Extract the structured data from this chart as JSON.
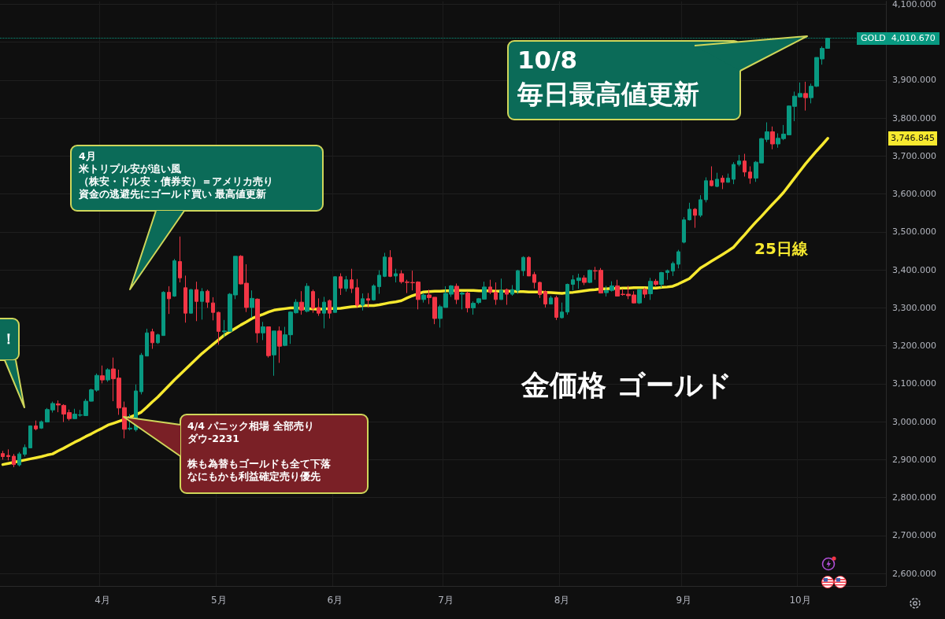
{
  "chart_data": {
    "type": "candlestick",
    "title": "金価格 ゴールド",
    "categories": [
      null,
      null,
      null,
      null,
      null,
      null,
      null,
      null,
      null,
      null,
      null,
      null,
      null,
      null,
      null,
      null,
      null,
      null,
      "4月",
      null,
      null,
      null,
      null,
      null,
      null,
      null,
      null,
      null,
      null,
      null,
      null,
      null,
      null,
      null,
      null,
      null,
      null,
      null,
      null,
      "5月",
      null,
      null,
      null,
      null,
      null,
      null,
      null,
      null,
      null,
      null,
      null,
      null,
      null,
      null,
      null,
      null,
      null,
      null,
      null,
      null,
      "6月",
      null,
      null,
      null,
      null,
      null,
      null,
      null,
      null,
      null,
      null,
      null,
      null,
      null,
      null,
      null,
      null,
      null,
      null,
      null,
      "7月",
      null,
      null,
      null,
      null,
      null,
      null,
      null,
      null,
      null,
      null,
      null,
      null,
      null,
      null,
      null,
      null,
      null,
      null,
      null,
      null,
      "8月",
      null,
      null,
      null,
      null,
      null,
      null,
      null,
      null,
      null,
      null,
      null,
      null,
      null,
      null,
      null,
      null,
      null,
      null,
      null,
      null,
      null,
      "9月",
      null,
      null,
      null,
      null,
      null,
      null,
      null,
      null,
      null,
      null,
      null,
      null,
      null,
      null,
      null,
      null,
      null,
      null,
      null,
      null,
      "10月",
      null,
      null,
      null,
      null,
      null
    ],
    "series": [
      {
        "name": "GOLD",
        "colors": [
          "#f23645",
          "#f23645",
          "#f23645",
          "#089981",
          "#089981",
          "#089981",
          "#f23645",
          "#089981",
          "#089981",
          "#089981",
          "#f23645",
          "#f23645",
          "#f23645",
          "#089981",
          "#089981",
          "#089981",
          "#089981",
          "#089981",
          "#f23645",
          "#089981",
          "#f23645",
          "#f23645",
          "#f23645",
          "#089981",
          "#089981",
          "#089981",
          "#089981",
          "#f23645",
          "#089981",
          "#089981",
          "#f23645",
          "#089981",
          "#f23645",
          "#f23645",
          "#089981",
          "#f23645",
          "#089981",
          "#f23645",
          "#f23645",
          "#f23645",
          "#089981",
          "#089981",
          "#089981",
          "#f23645",
          "#f23645",
          "#089981",
          "#f23645",
          "#089981",
          "#f23645",
          "#089981",
          "#f23645",
          "#089981",
          "#089981",
          "#089981",
          "#f23645",
          "#089981",
          "#f23645",
          "#f23645",
          "#089981",
          "#f23645",
          "#089981",
          "#f23645",
          "#089981",
          "#f23645",
          "#f23645",
          "#089981",
          "#f23645",
          "#089981",
          "#089981",
          "#089981",
          "#f23645",
          "#089981",
          "#f23645",
          "#f23645",
          "#f23645",
          "#f23645",
          "#089981",
          "#f23645",
          "#f23645",
          "#089981",
          "#089981",
          "#089981",
          "#f23645",
          "#089981",
          "#f23645",
          "#089981",
          "#089981",
          "#089981",
          "#f23645",
          "#f23645",
          "#089981",
          "#f23645",
          "#089981",
          "#089981",
          "#089981",
          "#f23645",
          "#f23645",
          "#f23645",
          "#f23645",
          "#089981",
          "#f23645",
          "#089981",
          "#089981",
          "#089981",
          "#089981",
          "#f23645",
          "#089981",
          "#f23645",
          "#f23645",
          "#089981",
          "#089981",
          "#f23645",
          "#f23645",
          "#f23645",
          "#f23645",
          "#089981",
          "#f23645",
          "#089981",
          "#f23645",
          "#089981",
          "#089981",
          "#089981",
          "#089981",
          "#089981",
          "#089981",
          "#f23645",
          "#089981",
          "#089981",
          "#f23645",
          "#089981",
          "#f23645",
          "#089981",
          "#089981",
          "#089981",
          "#f23645",
          "#f23645",
          "#089981",
          "#089981",
          "#089981",
          "#f23645",
          "#089981",
          "#089981",
          "#089981",
          "#089981",
          "#089981",
          "#f23645",
          "#089981",
          "#089981",
          "#089981",
          "#089981"
        ],
        "ohlc": [
          [
            2916,
            2923,
            2900,
            2908
          ],
          [
            2911,
            2927,
            2898,
            2908
          ],
          [
            2909,
            2915,
            2880,
            2887
          ],
          [
            2886,
            2920,
            2882,
            2915
          ],
          [
            2914,
            2940,
            2908,
            2932
          ],
          [
            2931,
            2990,
            2930,
            2989
          ],
          [
            2989,
            3003,
            2977,
            2981
          ],
          [
            2983,
            3003,
            2981,
            3000
          ],
          [
            2999,
            3036,
            2998,
            3032
          ],
          [
            3031,
            3053,
            3024,
            3048
          ],
          [
            3047,
            3056,
            3025,
            3044
          ],
          [
            3043,
            3046,
            2999,
            3020
          ],
          [
            3024,
            3032,
            3003,
            3008
          ],
          [
            3008,
            3034,
            3007,
            3020
          ],
          [
            3017,
            3031,
            3013,
            3018
          ],
          [
            3016,
            3060,
            3015,
            3054
          ],
          [
            3054,
            3087,
            3053,
            3084
          ],
          [
            3083,
            3127,
            3079,
            3122
          ],
          [
            3121,
            3148,
            3101,
            3110
          ],
          [
            3110,
            3141,
            3105,
            3137
          ],
          [
            3139,
            3169,
            3054,
            3113
          ],
          [
            3115,
            3137,
            3018,
            3036
          ],
          [
            3037,
            3053,
            2956,
            2980
          ],
          [
            2981,
            3020,
            2977,
            2983
          ],
          [
            2979,
            3098,
            2974,
            3081
          ],
          [
            3079,
            3181,
            3072,
            3175
          ],
          [
            3173,
            3245,
            3173,
            3234
          ],
          [
            3237,
            3245,
            3192,
            3208
          ],
          [
            3208,
            3232,
            3205,
            3229
          ],
          [
            3227,
            3344,
            3227,
            3341
          ],
          [
            3341,
            3357,
            3284,
            3324
          ],
          [
            3331,
            3429,
            3329,
            3424
          ],
          [
            3422,
            3488,
            3367,
            3379
          ],
          [
            3353,
            3385,
            3261,
            3286
          ],
          [
            3286,
            3350,
            3285,
            3348
          ],
          [
            3348,
            3369,
            3265,
            3317
          ],
          [
            3317,
            3352,
            3269,
            3343
          ],
          [
            3344,
            3348,
            3300,
            3315
          ],
          [
            3313,
            3328,
            3267,
            3288
          ],
          [
            3288,
            3290,
            3203,
            3238
          ],
          [
            3237,
            3268,
            3224,
            3239
          ],
          [
            3238,
            3339,
            3237,
            3336
          ],
          [
            3334,
            3436,
            3323,
            3436
          ],
          [
            3436,
            3439,
            3362,
            3363
          ],
          [
            3365,
            3415,
            3289,
            3301
          ],
          [
            3301,
            3346,
            3274,
            3325
          ],
          [
            3323,
            3325,
            3208,
            3234
          ],
          [
            3234,
            3263,
            3215,
            3250
          ],
          [
            3250,
            3250,
            3169,
            3174
          ],
          [
            3176,
            3239,
            3121,
            3239
          ],
          [
            3239,
            3251,
            3155,
            3199
          ],
          [
            3201,
            3250,
            3199,
            3229
          ],
          [
            3229,
            3291,
            3205,
            3289
          ],
          [
            3287,
            3323,
            3285,
            3315
          ],
          [
            3315,
            3344,
            3282,
            3294
          ],
          [
            3291,
            3365,
            3288,
            3357
          ],
          [
            3343,
            3348,
            3287,
            3299
          ],
          [
            3301,
            3325,
            3279,
            3286
          ],
          [
            3286,
            3329,
            3246,
            3315
          ],
          [
            3319,
            3322,
            3272,
            3286
          ],
          [
            3288,
            3383,
            3288,
            3382
          ],
          [
            3382,
            3391,
            3334,
            3352
          ],
          [
            3351,
            3384,
            3343,
            3374
          ],
          [
            3374,
            3403,
            3339,
            3351
          ],
          [
            3353,
            3376,
            3300,
            3307
          ],
          [
            3307,
            3338,
            3293,
            3324
          ],
          [
            3324,
            3339,
            3301,
            3320
          ],
          [
            3321,
            3362,
            3319,
            3358
          ],
          [
            3356,
            3399,
            3337,
            3386
          ],
          [
            3383,
            3445,
            3381,
            3434
          ],
          [
            3433,
            3452,
            3381,
            3383
          ],
          [
            3384,
            3403,
            3367,
            3390
          ],
          [
            3390,
            3399,
            3364,
            3369
          ],
          [
            3368,
            3374,
            3339,
            3367
          ],
          [
            3367,
            3398,
            3346,
            3366
          ],
          [
            3368,
            3370,
            3296,
            3322
          ],
          [
            3322,
            3339,
            3314,
            3334
          ],
          [
            3334,
            3348,
            3310,
            3327
          ],
          [
            3328,
            3328,
            3257,
            3272
          ],
          [
            3272,
            3308,
            3248,
            3303
          ],
          [
            3301,
            3357,
            3301,
            3338
          ],
          [
            3336,
            3360,
            3329,
            3358
          ],
          [
            3357,
            3364,
            3310,
            3322
          ],
          [
            3336,
            3343,
            3296,
            3339
          ],
          [
            3339,
            3343,
            3288,
            3300
          ],
          [
            3300,
            3317,
            3282,
            3312
          ],
          [
            3314,
            3326,
            3310,
            3324
          ],
          [
            3323,
            3369,
            3322,
            3355
          ],
          [
            3355,
            3374,
            3336,
            3341
          ],
          [
            3341,
            3367,
            3308,
            3322
          ],
          [
            3322,
            3377,
            3321,
            3346
          ],
          [
            3348,
            3351,
            3308,
            3336
          ],
          [
            3336,
            3360,
            3332,
            3348
          ],
          [
            3346,
            3400,
            3337,
            3398
          ],
          [
            3398,
            3436,
            3384,
            3433
          ],
          [
            3433,
            3436,
            3384,
            3384
          ],
          [
            3388,
            3395,
            3351,
            3367
          ],
          [
            3367,
            3369,
            3326,
            3335
          ],
          [
            3343,
            3346,
            3301,
            3310
          ],
          [
            3310,
            3332,
            3310,
            3326
          ],
          [
            3327,
            3332,
            3268,
            3275
          ],
          [
            3274,
            3314,
            3272,
            3289
          ],
          [
            3289,
            3364,
            3282,
            3362
          ],
          [
            3362,
            3386,
            3346,
            3374
          ],
          [
            3372,
            3390,
            3350,
            3379
          ],
          [
            3379,
            3386,
            3360,
            3367
          ],
          [
            3367,
            3401,
            3365,
            3399
          ],
          [
            3398,
            3408,
            3374,
            3397
          ],
          [
            3399,
            3405,
            3338,
            3339
          ],
          [
            3340,
            3358,
            3330,
            3346
          ],
          [
            3346,
            3370,
            3343,
            3358
          ],
          [
            3358,
            3374,
            3331,
            3331
          ],
          [
            3336,
            3350,
            3332,
            3335
          ],
          [
            3336,
            3358,
            3323,
            3332
          ],
          [
            3334,
            3344,
            3312,
            3313
          ],
          [
            3313,
            3350,
            3310,
            3348
          ],
          [
            3348,
            3353,
            3326,
            3336
          ],
          [
            3337,
            3379,
            3321,
            3370
          ],
          [
            3370,
            3376,
            3358,
            3362
          ],
          [
            3362,
            3395,
            3353,
            3393
          ],
          [
            3393,
            3401,
            3374,
            3398
          ],
          [
            3397,
            3422,
            3384,
            3417
          ],
          [
            3415,
            3453,
            3404,
            3448
          ],
          [
            3473,
            3539,
            3470,
            3532
          ],
          [
            3532,
            3577,
            3530,
            3560
          ],
          [
            3560,
            3563,
            3511,
            3544
          ],
          [
            3544,
            3597,
            3539,
            3585
          ],
          [
            3585,
            3644,
            3578,
            3635
          ],
          [
            3635,
            3673,
            3620,
            3622
          ],
          [
            3620,
            3656,
            3618,
            3639
          ],
          [
            3642,
            3649,
            3613,
            3631
          ],
          [
            3631,
            3654,
            3630,
            3642
          ],
          [
            3639,
            3684,
            3626,
            3678
          ],
          [
            3678,
            3703,
            3673,
            3687
          ],
          [
            3687,
            3706,
            3646,
            3658
          ],
          [
            3658,
            3673,
            3627,
            3642
          ],
          [
            3642,
            3687,
            3632,
            3684
          ],
          [
            3682,
            3748,
            3682,
            3746
          ],
          [
            3744,
            3789,
            3737,
            3764
          ],
          [
            3764,
            3778,
            3718,
            3732
          ],
          [
            3732,
            3760,
            3722,
            3747
          ],
          [
            3746,
            3782,
            3742,
            3758
          ],
          [
            3756,
            3833,
            3755,
            3832
          ],
          [
            3831,
            3870,
            3792,
            3858
          ],
          [
            3856,
            3894,
            3854,
            3865
          ],
          [
            3865,
            3896,
            3820,
            3854
          ],
          [
            3854,
            3891,
            3839,
            3884
          ],
          [
            3884,
            3960,
            3882,
            3960
          ],
          [
            3956,
            3989,
            3941,
            3984
          ],
          [
            3984,
            4012,
            3983,
            4010.67
          ]
        ]
      },
      {
        "name": "25日線",
        "type": "line",
        "color": "#f7e92f",
        "values": [
          2887,
          2890,
          2893,
          2896,
          2899,
          2902,
          2905,
          2908,
          2912,
          2915,
          2923,
          2930,
          2938,
          2946,
          2953,
          2961,
          2968,
          2976,
          2983,
          2991,
          2996,
          3001,
          3006,
          3012,
          3018,
          3025,
          3038,
          3052,
          3065,
          3080,
          3095,
          3110,
          3124,
          3138,
          3152,
          3166,
          3180,
          3192,
          3204,
          3216,
          3228,
          3237,
          3246,
          3255,
          3263,
          3272,
          3278,
          3283,
          3289,
          3294,
          3296,
          3298,
          3300,
          3300,
          3299,
          3298,
          3297,
          3296,
          3297,
          3298,
          3298,
          3299,
          3301,
          3303,
          3304,
          3306,
          3306,
          3306,
          3308,
          3311,
          3314,
          3316,
          3319,
          3326,
          3332,
          3337,
          3342,
          3343,
          3344,
          3344,
          3345,
          3345,
          3346,
          3346,
          3346,
          3346,
          3345,
          3345,
          3345,
          3344,
          3344,
          3344,
          3344,
          3343,
          3343,
          3342,
          3342,
          3342,
          3341,
          3340,
          3339,
          3338,
          3340,
          3341,
          3343,
          3345,
          3347,
          3348,
          3350,
          3350,
          3351,
          3351,
          3352,
          3352,
          3353,
          3353,
          3353,
          3352,
          3352,
          3354,
          3355,
          3357,
          3363,
          3370,
          3377,
          3391,
          3405,
          3414,
          3423,
          3432,
          3441,
          3450,
          3460,
          3477,
          3493,
          3510,
          3526,
          3541,
          3557,
          3573,
          3588,
          3604,
          3623,
          3642,
          3661,
          3680,
          3697,
          3714,
          3730,
          3746.845
        ]
      }
    ],
    "ylim": [
      2567,
      4108
    ],
    "yticks": [
      {
        "value": 2600,
        "label": "2,600.000"
      },
      {
        "value": 2700,
        "label": "2,700.000"
      },
      {
        "value": 2800,
        "label": "2,800.000"
      },
      {
        "value": 2900,
        "label": "2,900.000"
      },
      {
        "value": 3000,
        "label": "3,000.000"
      },
      {
        "value": 3100,
        "label": "3,100.000"
      },
      {
        "value": 3200,
        "label": "3,200.000"
      },
      {
        "value": 3300,
        "label": "3,300.000"
      },
      {
        "value": 3400,
        "label": "3,400.000"
      },
      {
        "value": 3500,
        "label": "3,500.000"
      },
      {
        "value": 3600,
        "label": "3,600.000"
      },
      {
        "value": 3700,
        "label": "3,700.000"
      },
      {
        "value": 3800,
        "label": "3,800.000"
      },
      {
        "value": 3900,
        "label": "3,900.000"
      },
      {
        "value": 4000,
        "label": null
      },
      {
        "value": 4100,
        "label": "4,100.000"
      }
    ],
    "grid": true,
    "ref_lines": [
      {
        "axis": "y",
        "value": 4010.67,
        "label": "4,010.670",
        "color": "#089981",
        "line_style": "dotted"
      }
    ],
    "annotations": [
      "10/8",
      "毎日最高値更新",
      "4月",
      "米トリプル安が追い風",
      "（株安・ドル安・債券安）＝アメリカ売り",
      "資金の逃避先にゴールド買い 最高値更新",
      "4/4 パニック相場 全部売り",
      "ダウ-2231",
      "株も為替もゴールドも全て下落",
      "なにもかも利益確定売り優先",
      "！",
      "3,746.845"
    ]
  }
}
